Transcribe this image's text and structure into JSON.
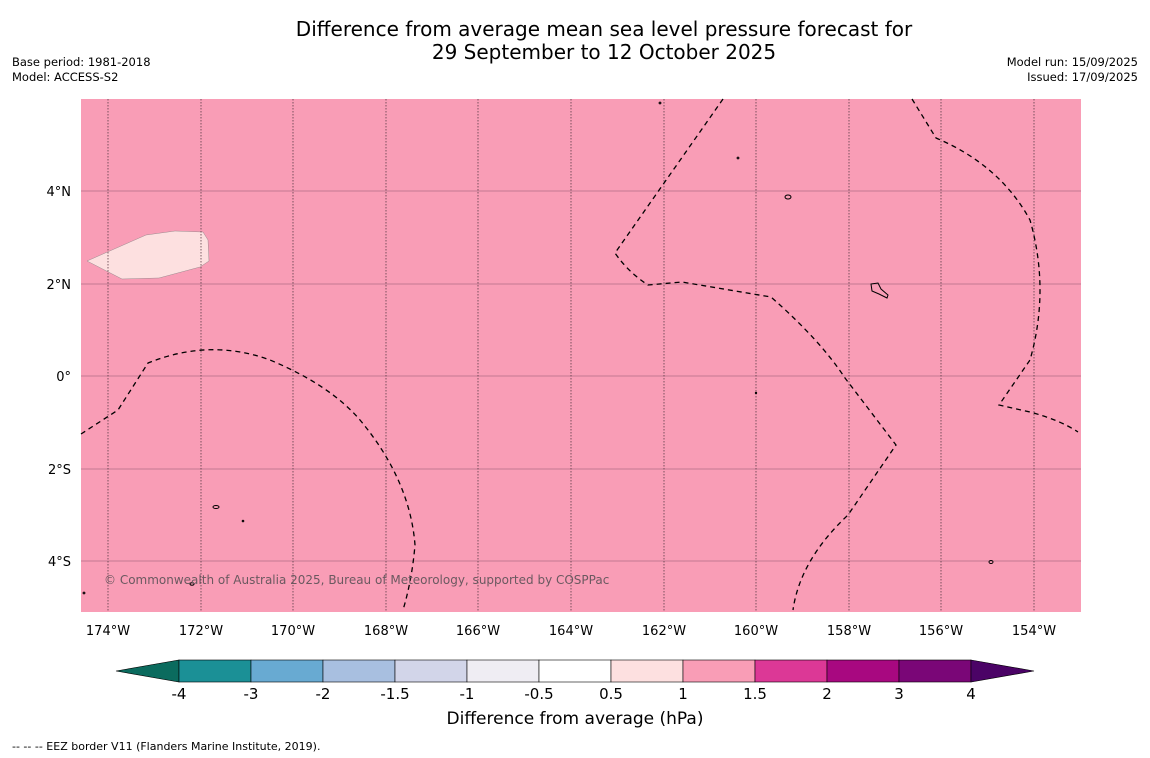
{
  "header": {
    "title_line1": "Difference from average mean sea level pressure forecast for",
    "title_line2": "29 September to 12 October 2025",
    "base_period": "Base period: 1981-2018",
    "model": "Model: ACCESS-S2",
    "model_run": "Model run: 15/09/2025",
    "issued": "Issued: 17/09/2025"
  },
  "map": {
    "lon_labels": [
      "174°W",
      "172°W",
      "170°W",
      "168°W",
      "166°W",
      "164°W",
      "162°W",
      "160°W",
      "158°W",
      "156°W",
      "154°W"
    ],
    "lat_labels": [
      "4°N",
      "2°N",
      "0°",
      "2°S",
      "4°S"
    ],
    "fill_colors": {
      "band_1_to_1_5": "#f99db6",
      "band_0_5_to_1": "#fde0e0"
    },
    "copyright": "© Commonwealth of Australia 2025, Bureau of Meteorology, supported by COSPPac"
  },
  "colorbar": {
    "labels": [
      "-4",
      "-3",
      "-2",
      "-1.5",
      "-1",
      "-0.5",
      "0.5",
      "1",
      "1.5",
      "2",
      "3",
      "4"
    ],
    "colors": [
      "#0b6b5e",
      "#1b9096",
      "#68aad2",
      "#a8bfe0",
      "#d2d5e9",
      "#efedf3",
      "#ffffff",
      "#fde0e0",
      "#f99db6",
      "#dc3896",
      "#a80880",
      "#7a0677",
      "#4b0366"
    ],
    "title": "Difference from average (hPa)"
  },
  "footer": {
    "eez_note": "--  --  -- EEZ border V11 (Flanders Marine Institute, 2019)."
  }
}
